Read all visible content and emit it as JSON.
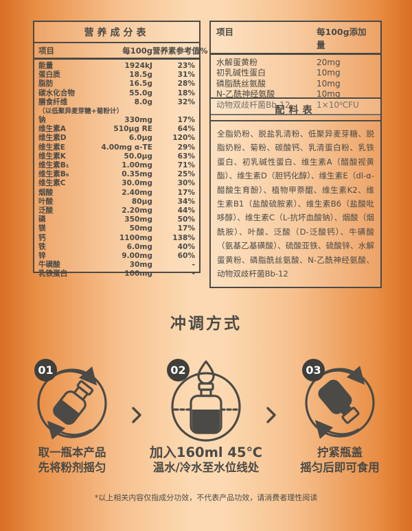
{
  "colors": {
    "edge_orange": "#d96e24",
    "center_peach": "#fcd9b2",
    "ink": "#4b4a46",
    "badge_bg": "#403f3b",
    "badge_text": "#ffffff"
  },
  "nutrition_table": {
    "title": "营养成分表",
    "headers": [
      "项目",
      "每100g",
      "营养素参考值%"
    ],
    "rows": [
      {
        "name": "能量",
        "value": "1924kJ",
        "nrv": "23%"
      },
      {
        "name": "蛋白质",
        "value": "18.5g",
        "nrv": "31%"
      },
      {
        "name": "脂肪",
        "value": "16.5g",
        "nrv": "28%"
      },
      {
        "name": "碳水化合物",
        "value": "55.0g",
        "nrv": "18%"
      },
      {
        "name": "膳食纤维",
        "value": "8.0g",
        "nrv": "32%",
        "note": "（以低聚异麦芽糖+菊粉计）"
      },
      {
        "name": "钠",
        "value": "330mg",
        "nrv": "17%"
      },
      {
        "name": "维生素A",
        "value": "510μg RE",
        "nrv": "64%"
      },
      {
        "name": "维生素D",
        "value": "6.0μg",
        "nrv": "120%"
      },
      {
        "name": "维生素E",
        "value": "4.00mg α-TE",
        "nrv": "29%"
      },
      {
        "name": "维生素K",
        "value": "50.0μg",
        "nrv": "63%"
      },
      {
        "name": "维生素B₁",
        "value": "1.00mg",
        "nrv": "71%"
      },
      {
        "name": "维生素B₆",
        "value": "0.35mg",
        "nrv": "25%"
      },
      {
        "name": "维生素C",
        "value": "30.0mg",
        "nrv": "30%"
      },
      {
        "name": "烟酸",
        "value": "2.40mg",
        "nrv": "17%"
      },
      {
        "name": "叶酸",
        "value": "80μg",
        "nrv": "34%"
      },
      {
        "name": "泛酸",
        "value": "2.20mg",
        "nrv": "44%"
      },
      {
        "name": "磷",
        "value": "350mg",
        "nrv": "50%"
      },
      {
        "name": "镁",
        "value": "50mg",
        "nrv": "17%"
      },
      {
        "name": "钙",
        "value": "1100mg",
        "nrv": "138%"
      },
      {
        "name": "铁",
        "value": "6.0mg",
        "nrv": "40%"
      },
      {
        "name": "锌",
        "value": "9.00mg",
        "nrv": "60%"
      },
      {
        "name": "牛磺酸",
        "value": "30mg",
        "nrv": "-"
      },
      {
        "name": "乳铁蛋白",
        "value": "100mg",
        "nrv": "-"
      }
    ]
  },
  "additives_table": {
    "headers": [
      "项目",
      "每100g添加量"
    ],
    "rows": [
      {
        "name": "水解蛋黄粉",
        "value": "20mg"
      },
      {
        "name": "初乳碱性蛋白",
        "value": "10mg"
      },
      {
        "name": "磷脂酰丝氨酸",
        "value": "10mg"
      },
      {
        "name": "N-乙酰神经氨酸",
        "value": "10mg"
      },
      {
        "name": "动物双歧杆菌Bb-12",
        "value": "1×10⁸CFU"
      }
    ]
  },
  "ingredients": {
    "title": "配料表",
    "text": "全脂奶粉、脱盐乳清粉、低聚异麦芽糖、脱脂奶粉、菊粉、碳酸钙、乳清蛋白粉、乳铁蛋白、初乳碱性蛋白、维生素A（醋酸视黄酯）、维生素D（胆钙化醇）、维生素E（dl-α-醋酸生育酚）、植物甲萘醌、维生素K2、维生素B1（盐酸硫胺素）、维生素B6（盐酸吡哆醇）、维生素C（L-抗坏血酸钠）、烟酸（烟酰胺）、叶酸、泛酸（D-泛酸钙）、牛磺酸（氨基乙基磺酸）、硫酸亚铁、硫酸锌、水解蛋黄粉、磷脂酰丝氨酸、N-乙酰神经氨酸、动物双歧杆菌Bb-12"
  },
  "preparation": {
    "title": "冲调方式",
    "steps": [
      {
        "number": "01",
        "icon": "shake-powder-bottle-icon",
        "line1": "取一瓶本产品",
        "line2": "先将粉剂摇匀"
      },
      {
        "number": "02",
        "icon": "add-water-bottle-icon",
        "line1": "加入160ml 45℃",
        "line2": "温水/冷水至水位线处"
      },
      {
        "number": "03",
        "icon": "shake-capped-bottle-icon",
        "line1": "拧紧瓶盖",
        "line2": "摇匀后即可食用"
      }
    ]
  },
  "disclaimer": "*以上相关内容仅指成分功效，不代表产品功效，请消费者理性阅读"
}
